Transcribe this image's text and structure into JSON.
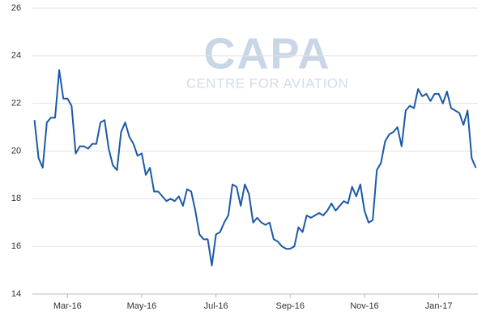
{
  "chart_data": {
    "type": "line",
    "watermark": {
      "logo": "CAPA",
      "subtitle": "CENTRE FOR AVIATION"
    },
    "categories": [
      null,
      null,
      null,
      null,
      null,
      null,
      null,
      null,
      "Mar-16",
      null,
      null,
      null,
      null,
      null,
      null,
      null,
      null,
      null,
      null,
      null,
      null,
      null,
      null,
      null,
      null,
      null,
      "May-16",
      null,
      null,
      null,
      null,
      null,
      null,
      null,
      null,
      null,
      null,
      null,
      null,
      null,
      null,
      null,
      null,
      null,
      "Jul-16",
      null,
      null,
      null,
      null,
      null,
      null,
      null,
      null,
      null,
      null,
      null,
      null,
      null,
      null,
      null,
      null,
      null,
      "Sep-16",
      null,
      null,
      null,
      null,
      null,
      null,
      null,
      null,
      null,
      null,
      null,
      null,
      null,
      null,
      null,
      null,
      null,
      "Nov-16",
      null,
      null,
      null,
      null,
      null,
      null,
      null,
      null,
      null,
      null,
      null,
      null,
      null,
      null,
      null,
      null,
      null,
      "Jan-17",
      null,
      null,
      null,
      null,
      null,
      null,
      null,
      null,
      null
    ],
    "values": [
      21.3,
      19.7,
      19.3,
      21.2,
      21.4,
      21.4,
      23.4,
      22.2,
      22.2,
      21.9,
      19.9,
      20.2,
      20.2,
      20.1,
      20.3,
      20.3,
      21.2,
      21.3,
      20.1,
      19.4,
      19.2,
      20.8,
      21.2,
      20.6,
      20.3,
      19.8,
      19.9,
      19.0,
      19.3,
      18.3,
      18.3,
      18.1,
      17.9,
      18.0,
      17.9,
      18.1,
      17.7,
      18.4,
      18.3,
      17.5,
      16.5,
      16.3,
      16.3,
      15.2,
      16.5,
      16.6,
      17.0,
      17.3,
      18.6,
      18.5,
      17.7,
      18.6,
      18.2,
      17.0,
      17.2,
      17.0,
      16.9,
      17.0,
      16.3,
      16.2,
      16.0,
      15.9,
      15.9,
      16.0,
      16.8,
      16.6,
      17.3,
      17.2,
      17.3,
      17.4,
      17.3,
      17.5,
      17.8,
      17.5,
      17.7,
      17.9,
      17.8,
      18.5,
      18.1,
      18.6,
      17.5,
      17.0,
      17.1,
      19.2,
      19.5,
      20.4,
      20.7,
      20.8,
      21.0,
      20.2,
      21.7,
      21.9,
      21.8,
      22.6,
      22.3,
      22.4,
      22.1,
      22.4,
      22.4,
      22.0,
      22.5,
      21.8,
      21.7,
      21.6,
      21.1,
      21.7,
      19.7,
      19.3
    ],
    "color": "#1b5aa6",
    "ylim": [
      14,
      26
    ],
    "yticks": [
      14,
      16,
      18,
      20,
      22,
      24,
      26
    ],
    "grid": true
  }
}
